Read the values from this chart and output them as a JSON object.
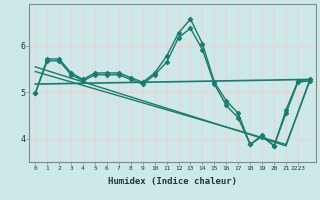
{
  "xlabel": "Humidex (Indice chaleur)",
  "bg_color": "#cce8e8",
  "grid_color": "#f0d0d0",
  "line_color": "#1a7a6e",
  "xlim": [
    -0.5,
    23.5
  ],
  "ylim": [
    3.5,
    6.9
  ],
  "yticks": [
    4,
    5,
    6
  ],
  "xtick_labels": [
    "0",
    "1",
    "2",
    "3",
    "4",
    "5",
    "6",
    "7",
    "8",
    "9",
    "10",
    "11",
    "12",
    "13",
    "14",
    "15",
    "16",
    "17",
    "18",
    "19",
    "20",
    "21",
    "2223"
  ],
  "xtick_positions": [
    0,
    1,
    2,
    3,
    4,
    5,
    6,
    7,
    8,
    9,
    10,
    11,
    12,
    13,
    14,
    15,
    16,
    17,
    18,
    19,
    20,
    21,
    22
  ],
  "lines": [
    {
      "x": [
        0,
        1,
        2,
        3,
        4,
        5,
        6,
        7,
        8,
        9,
        10,
        11,
        12,
        13,
        14,
        15,
        16,
        17,
        18,
        19,
        20,
        21,
        22,
        23
      ],
      "y": [
        4.98,
        5.72,
        5.72,
        5.42,
        5.28,
        5.42,
        5.42,
        5.42,
        5.32,
        5.22,
        5.42,
        5.78,
        6.28,
        6.58,
        6.05,
        5.22,
        4.82,
        4.55,
        3.88,
        4.08,
        3.85,
        4.62,
        5.25,
        5.28
      ],
      "marker": "D",
      "markersize": 2.5,
      "linewidth": 1.0
    },
    {
      "x": [
        0,
        1,
        2,
        3,
        4,
        5,
        6,
        7,
        8,
        9,
        10,
        11,
        12,
        13,
        14,
        15,
        16,
        17,
        18,
        19,
        20,
        21,
        22,
        23
      ],
      "y": [
        4.98,
        5.68,
        5.68,
        5.38,
        5.25,
        5.38,
        5.38,
        5.38,
        5.28,
        5.18,
        5.38,
        5.65,
        6.18,
        6.38,
        5.92,
        5.18,
        4.72,
        4.45,
        3.88,
        4.05,
        3.85,
        4.55,
        5.22,
        5.25
      ],
      "marker": "D",
      "markersize": 2.5,
      "linewidth": 1.0
    },
    {
      "x": [
        0,
        23
      ],
      "y": [
        5.18,
        5.28
      ],
      "marker": null,
      "markersize": 0,
      "linewidth": 1.2
    },
    {
      "x": [
        0,
        21,
        23
      ],
      "y": [
        5.55,
        3.85,
        5.28
      ],
      "marker": null,
      "markersize": 0,
      "linewidth": 1.0
    },
    {
      "x": [
        0,
        21,
        23
      ],
      "y": [
        5.45,
        3.88,
        5.25
      ],
      "marker": null,
      "markersize": 0,
      "linewidth": 1.0
    }
  ]
}
